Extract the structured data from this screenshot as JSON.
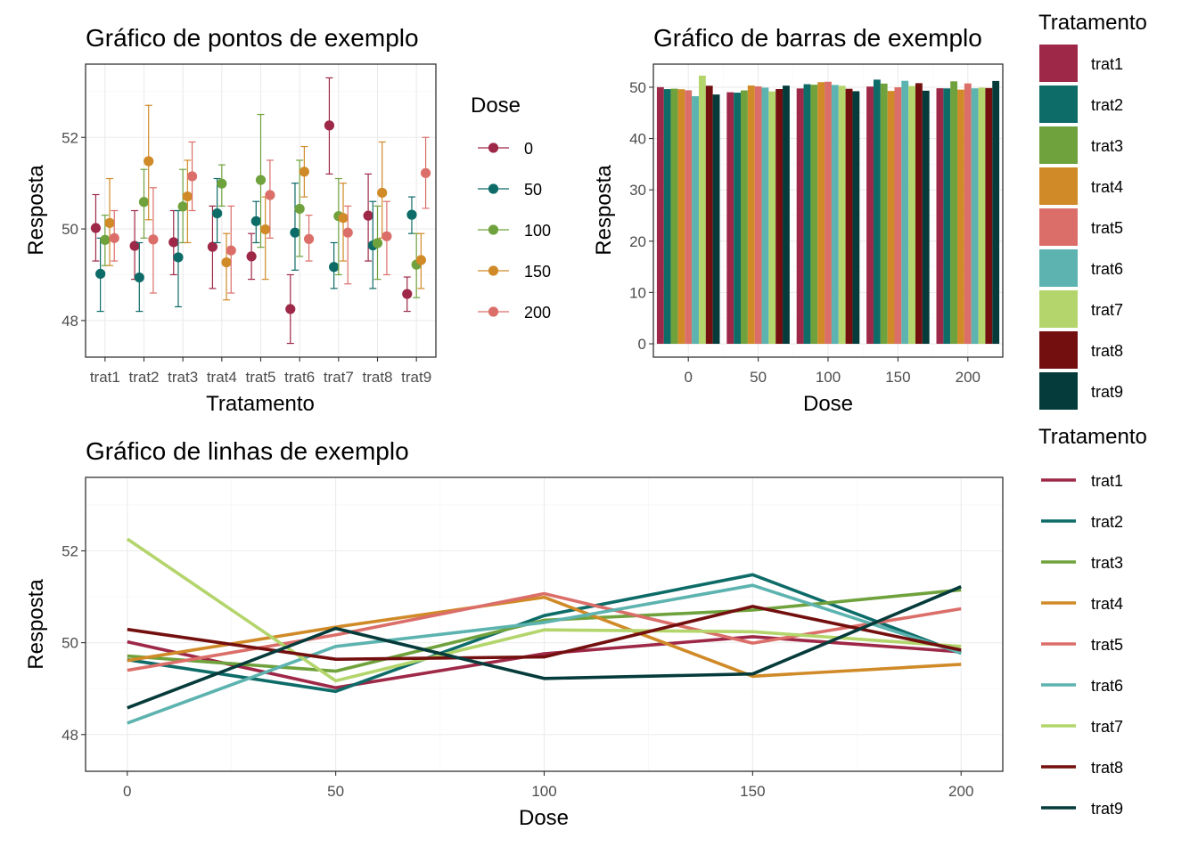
{
  "palette": {
    "trat1": "#9E2847",
    "trat2": "#0D6B68",
    "trat3": "#6FA23C",
    "trat4": "#D08A28",
    "trat5": "#DB6E69",
    "trat6": "#5CB3AF",
    "trat7": "#B3D56B",
    "trat8": "#73100F",
    "trat9": "#063B3B"
  },
  "dose_colors": {
    "0": "#9E2847",
    "50": "#0D6B68",
    "100": "#6FA23C",
    "150": "#D08A28",
    "200": "#DB6E69"
  },
  "chart_data": [
    {
      "id": "points",
      "type": "scatter",
      "title": "Gráfico de pontos de exemplo",
      "xlabel": "Tratamento",
      "ylabel": "Resposta",
      "categories": [
        "trat1",
        "trat2",
        "trat3",
        "trat4",
        "trat5",
        "trat6",
        "trat7",
        "trat8",
        "trat9"
      ],
      "yticks": [
        48,
        50,
        52
      ],
      "ylim": [
        47.2,
        53.6
      ],
      "grid": true,
      "legend": {
        "title": "Dose",
        "position": "right"
      },
      "series": [
        {
          "name": "0",
          "values": [
            50.02,
            49.63,
            49.71,
            49.61,
            49.4,
            48.25,
            52.26,
            50.29,
            48.58
          ],
          "lower": [
            49.3,
            48.9,
            49.0,
            48.7,
            48.9,
            47.5,
            51.2,
            49.3,
            48.2
          ],
          "upper": [
            50.75,
            50.4,
            50.4,
            50.5,
            49.9,
            49.0,
            53.3,
            51.2,
            48.95
          ]
        },
        {
          "name": "50",
          "values": [
            49.02,
            48.94,
            49.38,
            50.34,
            50.17,
            49.92,
            49.17,
            49.64,
            50.31
          ],
          "lower": [
            48.2,
            48.2,
            48.3,
            49.7,
            49.7,
            49.1,
            48.7,
            48.7,
            49.9
          ],
          "upper": [
            49.8,
            49.7,
            50.4,
            51.1,
            50.6,
            51.0,
            49.7,
            50.6,
            50.7
          ]
        },
        {
          "name": "100",
          "values": [
            49.76,
            50.59,
            50.49,
            50.99,
            51.07,
            50.44,
            50.28,
            49.69,
            49.22
          ],
          "lower": [
            49.2,
            49.8,
            49.7,
            50.5,
            49.6,
            49.4,
            49.0,
            48.9,
            48.5
          ],
          "upper": [
            50.3,
            51.3,
            51.3,
            51.4,
            52.5,
            51.5,
            51.1,
            50.5,
            49.9
          ]
        },
        {
          "name": "150",
          "values": [
            50.13,
            51.48,
            50.71,
            49.27,
            49.99,
            51.25,
            50.24,
            50.79,
            49.32
          ],
          "lower": [
            49.2,
            50.2,
            49.7,
            48.45,
            48.9,
            50.7,
            49.3,
            49.8,
            48.7
          ],
          "upper": [
            51.1,
            52.7,
            51.5,
            49.9,
            50.7,
            51.8,
            51.0,
            51.9,
            49.9
          ]
        },
        {
          "name": "200",
          "values": [
            49.8,
            49.77,
            51.15,
            49.53,
            50.74,
            49.78,
            49.92,
            49.84,
            51.22
          ],
          "lower": [
            49.3,
            48.6,
            50.4,
            48.6,
            49.8,
            49.3,
            48.8,
            49.0,
            50.45
          ],
          "upper": [
            50.4,
            50.9,
            51.9,
            50.5,
            51.5,
            50.3,
            50.5,
            50.6,
            52.0
          ]
        }
      ]
    },
    {
      "id": "bars",
      "type": "bar",
      "title": "Gráfico de barras de exemplo",
      "xlabel": "Dose",
      "ylabel": "Resposta",
      "categories": [
        "0",
        "50",
        "100",
        "150",
        "200"
      ],
      "yticks": [
        0,
        10,
        20,
        30,
        40,
        50
      ],
      "ylim": [
        -2.6,
        54.5
      ],
      "grid": true,
      "legend": {
        "title": "Tratamento",
        "position": "right"
      },
      "series": [
        {
          "name": "trat1",
          "values": [
            50.02,
            49.02,
            49.76,
            50.13,
            49.8
          ]
        },
        {
          "name": "trat2",
          "values": [
            49.63,
            48.94,
            50.59,
            51.48,
            49.77
          ]
        },
        {
          "name": "trat3",
          "values": [
            49.71,
            49.38,
            50.49,
            50.71,
            51.15
          ]
        },
        {
          "name": "trat4",
          "values": [
            49.61,
            50.34,
            50.99,
            49.27,
            49.53
          ]
        },
        {
          "name": "trat5",
          "values": [
            49.4,
            50.17,
            51.07,
            49.99,
            50.74
          ]
        },
        {
          "name": "trat6",
          "values": [
            48.25,
            49.92,
            50.44,
            51.25,
            49.78
          ]
        },
        {
          "name": "trat7",
          "values": [
            52.26,
            49.17,
            50.28,
            50.24,
            49.92
          ]
        },
        {
          "name": "trat8",
          "values": [
            50.29,
            49.64,
            49.69,
            50.79,
            49.84
          ]
        },
        {
          "name": "trat9",
          "values": [
            48.58,
            50.31,
            49.22,
            49.32,
            51.22
          ]
        }
      ]
    },
    {
      "id": "lines",
      "type": "line",
      "title": "Gráfico de linhas de exemplo",
      "xlabel": "Dose",
      "ylabel": "Resposta",
      "x": [
        0,
        50,
        100,
        150,
        200
      ],
      "xticks": [
        0,
        50,
        100,
        150,
        200
      ],
      "xlim": [
        -10,
        210
      ],
      "yticks": [
        48,
        50,
        52
      ],
      "ylim": [
        47.2,
        53.6
      ],
      "grid": true,
      "legend": {
        "title": "Tratamento",
        "position": "right"
      },
      "series": [
        {
          "name": "trat1",
          "values": [
            50.02,
            49.02,
            49.76,
            50.13,
            49.8
          ]
        },
        {
          "name": "trat2",
          "values": [
            49.63,
            48.94,
            50.59,
            51.48,
            49.77
          ]
        },
        {
          "name": "trat3",
          "values": [
            49.71,
            49.38,
            50.49,
            50.71,
            51.15
          ]
        },
        {
          "name": "trat4",
          "values": [
            49.61,
            50.34,
            50.99,
            49.27,
            49.53
          ]
        },
        {
          "name": "trat5",
          "values": [
            49.4,
            50.17,
            51.07,
            49.99,
            50.74
          ]
        },
        {
          "name": "trat6",
          "values": [
            48.25,
            49.92,
            50.44,
            51.25,
            49.78
          ]
        },
        {
          "name": "trat7",
          "values": [
            52.26,
            49.17,
            50.28,
            50.24,
            49.92
          ]
        },
        {
          "name": "trat8",
          "values": [
            50.29,
            49.64,
            49.69,
            50.79,
            49.84
          ]
        },
        {
          "name": "trat9",
          "values": [
            48.58,
            50.31,
            49.22,
            49.32,
            51.22
          ]
        }
      ]
    }
  ]
}
